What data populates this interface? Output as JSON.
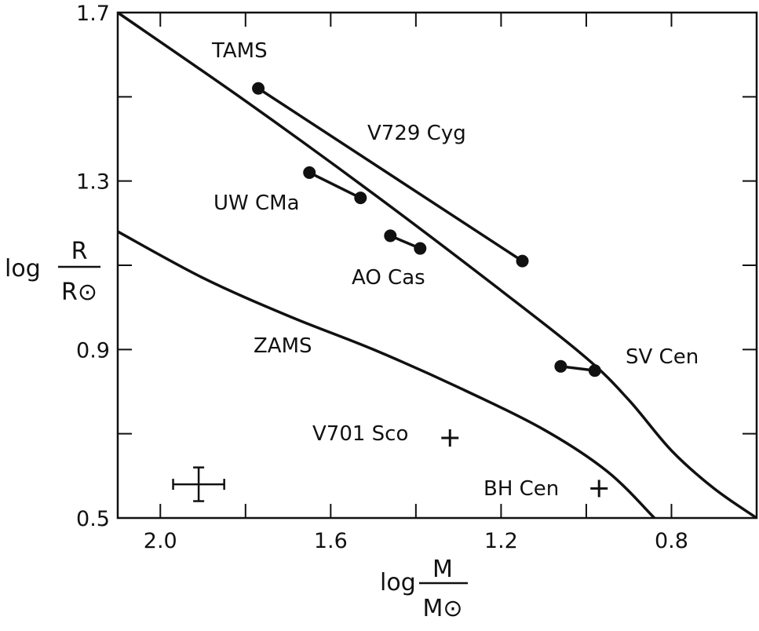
{
  "chart_data": {
    "type": "scatter",
    "title": "",
    "xlabel": {
      "prefix": "log",
      "numerator": "M",
      "denominator": "M⊙"
    },
    "ylabel": {
      "prefix": "log",
      "numerator": "R",
      "denominator": "R⊙"
    },
    "xlim": [
      2.1,
      0.6
    ],
    "ylim": [
      0.5,
      1.7
    ],
    "x_reversed": true,
    "x_ticks": [
      {
        "value": 2.0,
        "label": "2.0"
      },
      {
        "value": 1.6,
        "label": "1.6"
      },
      {
        "value": 1.2,
        "label": "1.2"
      },
      {
        "value": 0.8,
        "label": "0.8"
      }
    ],
    "x_minor_ticks": [
      1.8,
      1.4,
      1.0
    ],
    "y_ticks": [
      {
        "value": 1.7,
        "label": "1.7"
      },
      {
        "value": 1.3,
        "label": "1.3"
      },
      {
        "value": 0.9,
        "label": "0.9"
      },
      {
        "value": 0.5,
        "label": "0.5"
      }
    ],
    "y_minor_ticks": [
      1.5,
      1.1,
      0.7
    ],
    "grid": false,
    "curves": [
      {
        "name": "TAMS",
        "points": [
          [
            2.1,
            1.7
          ],
          [
            1.8,
            1.49
          ],
          [
            1.5,
            1.27
          ],
          [
            1.2,
            1.04
          ],
          [
            1.0,
            0.88
          ],
          [
            0.9,
            0.78
          ],
          [
            0.8,
            0.66
          ],
          [
            0.7,
            0.57
          ],
          [
            0.6,
            0.5
          ]
        ]
      },
      {
        "name": "ZAMS",
        "points": [
          [
            2.1,
            1.18
          ],
          [
            1.9,
            1.07
          ],
          [
            1.7,
            0.98
          ],
          [
            1.5,
            0.9
          ],
          [
            1.3,
            0.81
          ],
          [
            1.1,
            0.71
          ],
          [
            0.95,
            0.61
          ],
          [
            0.84,
            0.5
          ]
        ]
      }
    ],
    "binaries": [
      {
        "name": "V729 Cyg",
        "components": [
          [
            1.77,
            1.52
          ],
          [
            1.15,
            1.11
          ]
        ]
      },
      {
        "name": "UW CMa",
        "components": [
          [
            1.65,
            1.32
          ],
          [
            1.53,
            1.26
          ]
        ]
      },
      {
        "name": "AO Cas",
        "components": [
          [
            1.46,
            1.17
          ],
          [
            1.39,
            1.14
          ]
        ]
      },
      {
        "name": "SV Cen",
        "components": [
          [
            1.06,
            0.86
          ],
          [
            0.98,
            0.85
          ]
        ]
      }
    ],
    "crosses": [
      {
        "name": "V701 Sco",
        "x": 1.32,
        "y": 0.69
      },
      {
        "name": "BH Cen",
        "x": 0.97,
        "y": 0.57
      }
    ],
    "error_bar": {
      "x": 1.91,
      "y": 0.58,
      "xerr": 0.06,
      "yerr": 0.04
    },
    "labels": {
      "tams": "TAMS",
      "zams": "ZAMS",
      "v729": "V729 Cyg",
      "uwcma": "UW CMa",
      "aocas": "AO Cas",
      "svcen": "SV Cen",
      "v701": "V701 Sco",
      "bhcen": "BH Cen"
    }
  }
}
